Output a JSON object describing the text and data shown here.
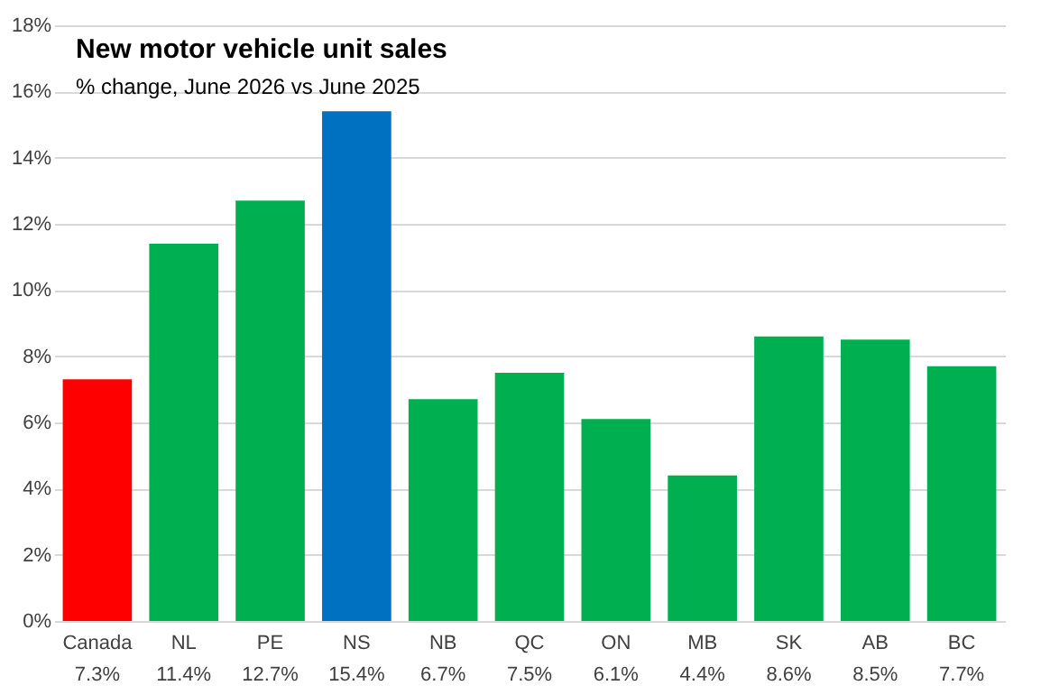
{
  "chart_data": {
    "type": "bar",
    "title": "New motor vehicle unit sales",
    "subtitle": "% change, June 2026 vs June 2025",
    "categories": [
      "Canada",
      "NL",
      "PE",
      "NS",
      "NB",
      "QC",
      "ON",
      "MB",
      "SK",
      "AB",
      "BC"
    ],
    "values": [
      7.3,
      11.4,
      12.7,
      15.4,
      6.7,
      7.5,
      6.1,
      4.4,
      8.6,
      8.5,
      7.7
    ],
    "value_labels": [
      "7.3%",
      "11.4%",
      "12.7%",
      "15.4%",
      "6.7%",
      "7.5%",
      "6.1%",
      "4.4%",
      "8.6%",
      "8.5%",
      "7.7%"
    ],
    "colors": [
      "#ff0000",
      "#00b050",
      "#00b050",
      "#0070c0",
      "#00b050",
      "#00b050",
      "#00b050",
      "#00b050",
      "#00b050",
      "#00b050",
      "#00b050"
    ],
    "ylim": [
      0,
      18
    ],
    "yticks": [
      {
        "value": 0,
        "label": "0%"
      },
      {
        "value": 2,
        "label": "2%"
      },
      {
        "value": 4,
        "label": "4%"
      },
      {
        "value": 6,
        "label": "6%"
      },
      {
        "value": 8,
        "label": "8%"
      },
      {
        "value": 10,
        "label": "10%"
      },
      {
        "value": 12,
        "label": "12%"
      },
      {
        "value": 14,
        "label": "14%"
      },
      {
        "value": 16,
        "label": "16%"
      },
      {
        "value": 18,
        "label": "18%"
      }
    ],
    "grid": true
  }
}
